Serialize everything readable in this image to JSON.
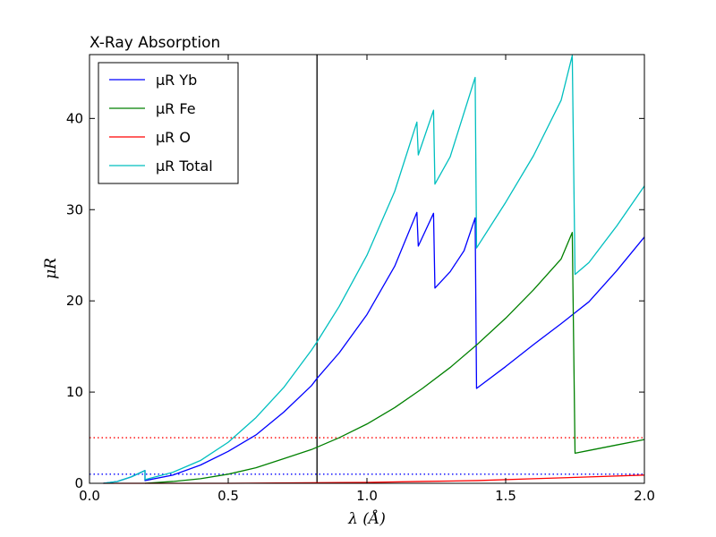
{
  "chart_data": {
    "type": "line",
    "title": "X-Ray Absorption",
    "xlabel": "λ (Å)",
    "ylabel": "μR",
    "xlim": [
      0.0,
      2.0
    ],
    "ylim": [
      0,
      47
    ],
    "xticks": [
      "0.0",
      "0.5",
      "1.0",
      "1.5",
      "2.0"
    ],
    "xtick_values": [
      0.0,
      0.5,
      1.0,
      1.5,
      2.0
    ],
    "yticks": [
      "0",
      "10",
      "20",
      "30",
      "40"
    ],
    "ytick_values": [
      0,
      10,
      20,
      30,
      40
    ],
    "legend_position": "top-left",
    "series": [
      {
        "name": "μR Yb",
        "color": "#0000ff",
        "points": [
          [
            0.05,
            0.0
          ],
          [
            0.1,
            0.2
          ],
          [
            0.15,
            0.7
          ],
          [
            0.2,
            1.4
          ],
          [
            0.2,
            0.3
          ],
          [
            0.3,
            0.9
          ],
          [
            0.4,
            2.0
          ],
          [
            0.5,
            3.5
          ],
          [
            0.6,
            5.3
          ],
          [
            0.7,
            7.8
          ],
          [
            0.8,
            10.7
          ],
          [
            0.82,
            11.5
          ],
          [
            0.9,
            14.3
          ],
          [
            1.0,
            18.5
          ],
          [
            1.1,
            23.8
          ],
          [
            1.18,
            29.7
          ],
          [
            1.185,
            26.0
          ],
          [
            1.24,
            29.6
          ],
          [
            1.245,
            21.4
          ],
          [
            1.3,
            23.2
          ],
          [
            1.35,
            25.5
          ],
          [
            1.39,
            29.1
          ],
          [
            1.395,
            10.4
          ],
          [
            1.5,
            12.8
          ],
          [
            1.6,
            15.2
          ],
          [
            1.7,
            17.5
          ],
          [
            1.8,
            19.9
          ],
          [
            1.9,
            23.3
          ],
          [
            2.0,
            27.0
          ]
        ]
      },
      {
        "name": "μR Fe",
        "color": "#008000",
        "points": [
          [
            0.2,
            0.0
          ],
          [
            0.3,
            0.2
          ],
          [
            0.4,
            0.5
          ],
          [
            0.5,
            1.0
          ],
          [
            0.6,
            1.7
          ],
          [
            0.7,
            2.7
          ],
          [
            0.8,
            3.7
          ],
          [
            0.9,
            5.0
          ],
          [
            1.0,
            6.5
          ],
          [
            1.1,
            8.3
          ],
          [
            1.2,
            10.4
          ],
          [
            1.3,
            12.7
          ],
          [
            1.4,
            15.3
          ],
          [
            1.5,
            18.1
          ],
          [
            1.6,
            21.2
          ],
          [
            1.7,
            24.6
          ],
          [
            1.74,
            27.5
          ],
          [
            1.75,
            3.3
          ],
          [
            1.8,
            3.6
          ],
          [
            1.9,
            4.2
          ],
          [
            2.0,
            4.8
          ]
        ]
      },
      {
        "name": "μR O",
        "color": "#ff0000",
        "points": [
          [
            0.05,
            0.0
          ],
          [
            0.5,
            0.0
          ],
          [
            1.0,
            0.1
          ],
          [
            1.2,
            0.2
          ],
          [
            1.4,
            0.3
          ],
          [
            1.6,
            0.5
          ],
          [
            1.8,
            0.7
          ],
          [
            2.0,
            0.9
          ]
        ]
      },
      {
        "name": "μR Total",
        "color": "#00bfbf",
        "points": [
          [
            0.05,
            0.0
          ],
          [
            0.1,
            0.2
          ],
          [
            0.15,
            0.7
          ],
          [
            0.2,
            1.4
          ],
          [
            0.2,
            0.4
          ],
          [
            0.3,
            1.2
          ],
          [
            0.4,
            2.5
          ],
          [
            0.5,
            4.5
          ],
          [
            0.6,
            7.2
          ],
          [
            0.7,
            10.5
          ],
          [
            0.8,
            14.6
          ],
          [
            0.82,
            15.5
          ],
          [
            0.9,
            19.4
          ],
          [
            1.0,
            25.0
          ],
          [
            1.1,
            32.0
          ],
          [
            1.18,
            39.6
          ],
          [
            1.185,
            36.0
          ],
          [
            1.24,
            40.9
          ],
          [
            1.245,
            32.8
          ],
          [
            1.3,
            35.8
          ],
          [
            1.39,
            44.5
          ],
          [
            1.395,
            25.8
          ],
          [
            1.5,
            30.8
          ],
          [
            1.6,
            35.9
          ],
          [
            1.7,
            42.0
          ],
          [
            1.74,
            46.9
          ],
          [
            1.75,
            22.9
          ],
          [
            1.8,
            24.2
          ],
          [
            1.9,
            28.2
          ],
          [
            2.0,
            32.6
          ]
        ]
      }
    ],
    "reference_lines": [
      {
        "type": "vertical",
        "x": 0.82,
        "color": "#000000",
        "style": "solid"
      },
      {
        "type": "horizontal",
        "y": 5,
        "color": "#ff0000",
        "style": "dotted"
      },
      {
        "type": "horizontal",
        "y": 1,
        "color": "#0000ff",
        "style": "dotted"
      }
    ]
  }
}
